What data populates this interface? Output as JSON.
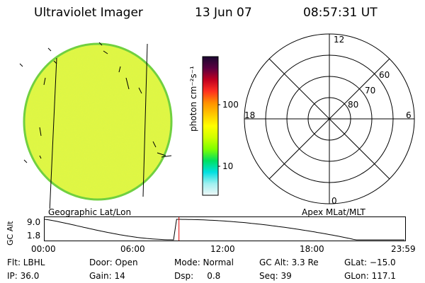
{
  "header": {
    "instrument": "Ultraviolet Imager",
    "date": "13 Jun 07",
    "time": "08:57:31 UT"
  },
  "colorbar": {
    "unit_label": "photon cm⁻²s⁻¹",
    "tick_labels": [
      "100",
      "10"
    ],
    "colors": [
      "#1a0830",
      "#5a0040",
      "#c00020",
      "#ff3020",
      "#ff9000",
      "#ffc800",
      "#ffff00",
      "#d0ff00",
      "#80ff00",
      "#00e060",
      "#00e0e0",
      "#a0f0f0",
      "#f0f8f8"
    ]
  },
  "images": {
    "left_label": "Geographic Lat/Lon",
    "right_label": "Apex MLat/MLT",
    "disk_color": "#e4f840"
  },
  "polar": {
    "mlt_labels": {
      "top": "12",
      "left": "18",
      "right": "6",
      "bottom": "0"
    },
    "lat_labels": [
      "60",
      "70",
      "80"
    ]
  },
  "orbit": {
    "axis_label": "GC Alt",
    "y_max_label": "9.0",
    "y_min_label": "1.8",
    "x_labels": [
      "00:00",
      "06:00",
      "12:00",
      "18:00",
      "23:59"
    ],
    "current_hour": 8.96,
    "marker_color": "#e00000"
  },
  "info": {
    "row1": {
      "filter": "Flt: LBHL",
      "door": "Door: Open",
      "mode": "Mode: Normal",
      "gc_alt": "GC Alt: 3.3 Re",
      "glat": "GLat: −15.0"
    },
    "row2": {
      "ip": "IP: 36.0",
      "gain": "Gain: 14",
      "dsp": "Dsp:     0.8",
      "seq": "Seq: 39",
      "glon": "GLon: 117.1"
    }
  }
}
